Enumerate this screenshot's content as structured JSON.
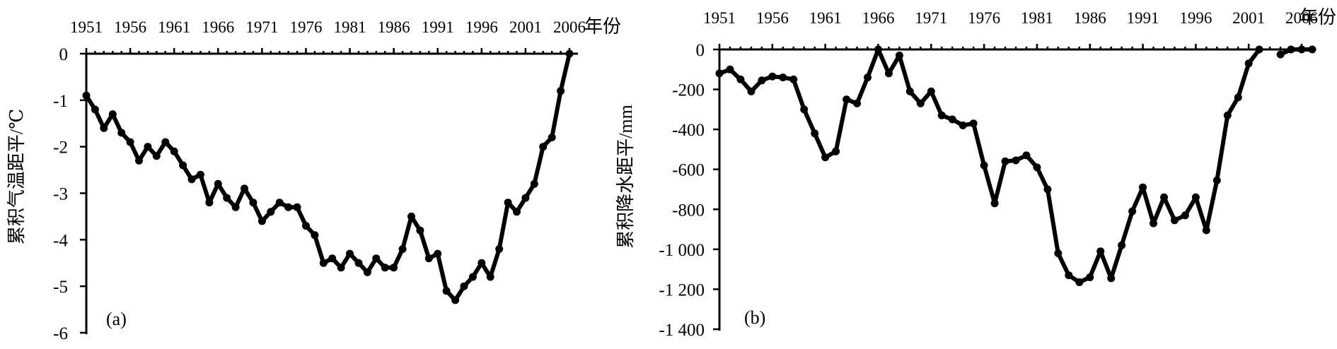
{
  "chart_data": [
    {
      "type": "line",
      "panel_label": "(a)",
      "xlabel": "年份",
      "ylabel": "累积气温距平/℃",
      "x_ticks": [
        "1951",
        "1956",
        "1961",
        "1966",
        "1971",
        "1976",
        "1981",
        "1986",
        "1991",
        "1996",
        "2001",
        "2006"
      ],
      "y_ticks": [
        "0",
        "-1",
        "-2",
        "-3",
        "-4",
        "-5",
        "-6"
      ],
      "xlim": [
        1951,
        2006
      ],
      "ylim": [
        -6,
        0
      ],
      "x_axis_position": "top",
      "grid": false,
      "series": [
        {
          "x": [
            1951,
            1952,
            1953,
            1954,
            1955,
            1956,
            1957,
            1958,
            1959,
            1960,
            1961,
            1962,
            1963,
            1964,
            1965,
            1966,
            1967,
            1968,
            1969,
            1970,
            1971,
            1972,
            1973,
            1974,
            1975,
            1976,
            1977,
            1978,
            1979,
            1980,
            1981,
            1982,
            1983,
            1984,
            1985,
            1986,
            1987,
            1988,
            1989,
            1990,
            1991,
            1992,
            1993,
            1994,
            1995,
            1996,
            1997,
            1998,
            1999,
            2000,
            2001,
            2002,
            2003,
            2004,
            2005,
            2006
          ],
          "values": [
            -0.9,
            -1.2,
            -1.6,
            -1.3,
            -1.7,
            -1.9,
            -2.3,
            -2.0,
            -2.2,
            -1.9,
            -2.1,
            -2.4,
            -2.7,
            -2.6,
            -3.2,
            -2.8,
            -3.1,
            -3.3,
            -2.9,
            -3.2,
            -3.6,
            -3.4,
            -3.2,
            -3.3,
            -3.3,
            -3.7,
            -3.9,
            -4.5,
            -4.4,
            -4.6,
            -4.3,
            -4.5,
            -4.7,
            -4.4,
            -4.6,
            -4.6,
            -4.2,
            -3.5,
            -3.8,
            -4.4,
            -4.3,
            -5.1,
            -5.3,
            -5.0,
            -4.8,
            -4.5,
            -4.8,
            -4.2,
            -3.2,
            -3.4,
            -3.1,
            -2.8,
            -2.0,
            -1.8,
            -0.8,
            0.0
          ]
        }
      ]
    },
    {
      "type": "line",
      "panel_label": "(b)",
      "xlabel": "年份",
      "ylabel": "累积降水距平/mm",
      "x_ticks": [
        "1951",
        "1956",
        "1961",
        "1966",
        "1971",
        "1976",
        "1981",
        "1986",
        "1991",
        "1996",
        "2001",
        "2006"
      ],
      "y_ticks": [
        "0",
        "-200",
        "-400",
        "-600",
        "-800",
        "-1 000",
        "-1 200",
        "-1 400"
      ],
      "xlim": [
        1951,
        2006
      ],
      "ylim": [
        -1400,
        0
      ],
      "x_axis_position": "top",
      "grid": false,
      "series": [
        {
          "x": [
            1951,
            1952,
            1953,
            1954,
            1955,
            1956,
            1957,
            1958,
            1959,
            1960,
            1961,
            1962,
            1963,
            1964,
            1965,
            1966,
            1967,
            1968,
            1969,
            1970,
            1971,
            1972,
            1973,
            1974,
            1975,
            1976,
            1977,
            1978,
            1979,
            1980,
            1981,
            1982,
            1983,
            1984,
            1985,
            1986,
            1987,
            1988,
            1989,
            1990,
            1991,
            1992,
            1993,
            1994,
            1995,
            1996,
            1997,
            1998,
            1999,
            2000,
            2001,
            2002
          ],
          "values": [
            -120,
            -100,
            -150,
            -210,
            -155,
            -135,
            -140,
            -150,
            -300,
            -420,
            -540,
            -510,
            -250,
            -270,
            -140,
            0,
            -120,
            -30,
            -210,
            -270,
            -210,
            -330,
            -350,
            -380,
            -370,
            -580,
            -770,
            -560,
            -555,
            -530,
            -590,
            -700,
            -1020,
            -1130,
            -1165,
            -1140,
            -1010,
            -1145,
            -980,
            -810,
            -690,
            -870,
            -740,
            -855,
            -830,
            -740,
            -905,
            -655,
            -330,
            -240,
            -70,
            0
          ]
        },
        {
          "x": [
            2004,
            2005,
            2006,
            2007
          ],
          "values": [
            -25,
            0,
            0,
            0
          ]
        }
      ]
    }
  ]
}
